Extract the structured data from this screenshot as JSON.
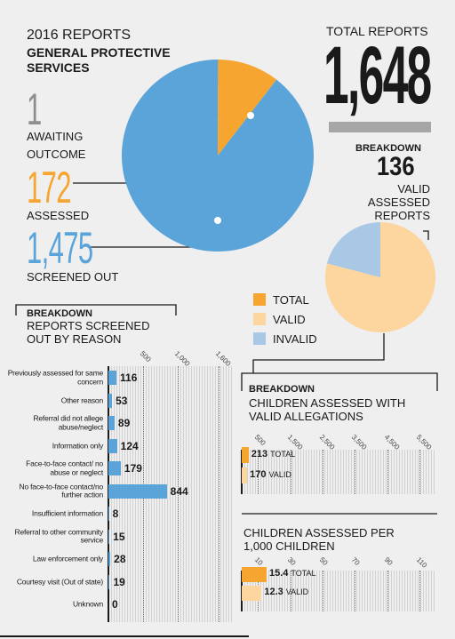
{
  "header": {
    "title": "2016 REPORTS",
    "subtitle": "GENERAL PROTECTIVE SERVICES",
    "total_label": "TOTAL REPORTS",
    "total": "1,648"
  },
  "chart_data": [
    {
      "type": "pie",
      "categories": [
        "AWAITING OUTCOME",
        "ASSESSED",
        "SCREENED OUT"
      ],
      "values": [
        1,
        172,
        1475
      ],
      "value_labels": [
        "1",
        "172",
        "1,475"
      ],
      "colors": [
        "#8d8d8d",
        "#f6a530",
        "#5ba4da"
      ]
    },
    {
      "type": "pie",
      "title": "BREAKDOWN",
      "subtitle": "VALID ASSESSED REPORTS",
      "categories": [
        "VALID",
        "INVALID"
      ],
      "values": [
        136,
        36
      ],
      "colors": [
        "#fdd59e",
        "#a8c8e6"
      ],
      "legend": [
        {
          "name": "TOTAL",
          "color": "#f6a530"
        },
        {
          "name": "VALID",
          "color": "#fdd59e"
        },
        {
          "name": "INVALID",
          "color": "#a8c8e6"
        }
      ]
    },
    {
      "type": "hbar",
      "title": "BREAKDOWN",
      "subtitle": "REPORTS SCREENED OUT BY REASON",
      "categories": [
        "Previously assessed for same concern",
        "Other reason",
        "Referral did not allege abuse/neglect",
        "Information only",
        "Face-to-face contact/ no abuse or neglect",
        "No face-to-face contact/no further action",
        "Insufficient information",
        "Referral to other community service",
        "Law enforcement only",
        "Courtesy visit (Out of state)",
        "Unknown"
      ],
      "values": [
        116,
        53,
        89,
        124,
        179,
        844,
        8,
        15,
        28,
        19,
        0
      ],
      "color": "#5ba4da",
      "xlim": [
        0,
        1800
      ],
      "xticks": [
        500,
        {
          "value": 1000,
          "label": "1,000"
        },
        {
          "value": 1600,
          "label": "1,600"
        }
      ]
    },
    {
      "type": "hbar",
      "title": "BREAKDOWN",
      "subtitle": "CHILDREN ASSESSED WITH VALID ALLEGATIONS",
      "categories": [
        "TOTAL",
        "VALID"
      ],
      "values": [
        213,
        170
      ],
      "colors": [
        "#f6a530",
        "#fdd59e"
      ],
      "xlim": [
        0,
        6000
      ],
      "xticks": [
        500,
        {
          "value": 1500,
          "label": "1,500"
        },
        {
          "value": 2500,
          "label": "2,500"
        },
        {
          "value": 3500,
          "label": "3,500"
        },
        {
          "value": 4500,
          "label": "4,500"
        },
        {
          "value": 5500,
          "label": "5,500"
        }
      ]
    },
    {
      "type": "hbar",
      "title": "CHILDREN ASSESSED PER 1,000 CHILDREN",
      "categories": [
        "TOTAL",
        "VALID"
      ],
      "values": [
        15.4,
        12.3
      ],
      "colors": [
        "#f6a530",
        "#fdd59e"
      ],
      "xlim": [
        0,
        120
      ],
      "xticks": [
        10,
        30,
        50,
        70,
        90,
        110
      ]
    }
  ]
}
